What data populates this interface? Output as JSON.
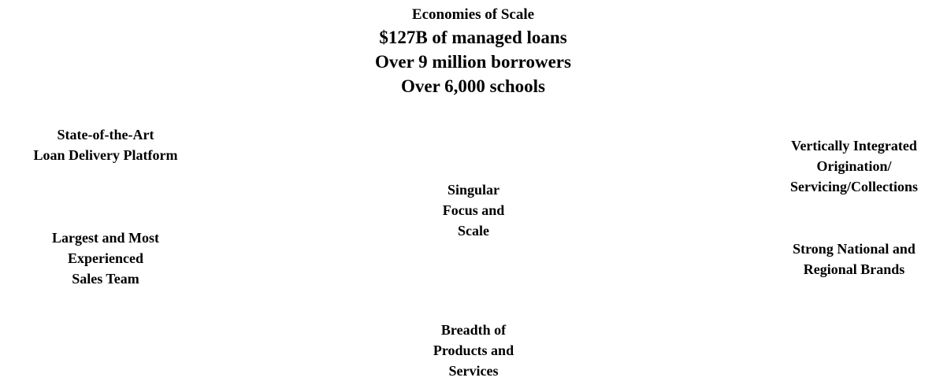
{
  "header": {
    "subtitle": "Economies of Scale",
    "stats": [
      "$127B of managed loans",
      "Over 9 million borrowers",
      "Over 6,000 schools"
    ]
  },
  "center": {
    "lines": [
      "Singular",
      "Focus and",
      "Scale"
    ]
  },
  "left": {
    "top": {
      "lines": [
        "State-of-the-Art",
        "Loan Delivery Platform"
      ]
    },
    "middle": {
      "lines": [
        "Largest and Most",
        "Experienced",
        "Sales Team"
      ]
    }
  },
  "right": {
    "top": {
      "lines": [
        "Vertically Integrated",
        "Origination/",
        "Servicing/Collections"
      ]
    },
    "middle": {
      "lines": [
        "Strong National and",
        "Regional Brands"
      ]
    }
  },
  "bottom": {
    "lines": [
      "Breadth of",
      "Products and",
      "Services"
    ]
  }
}
